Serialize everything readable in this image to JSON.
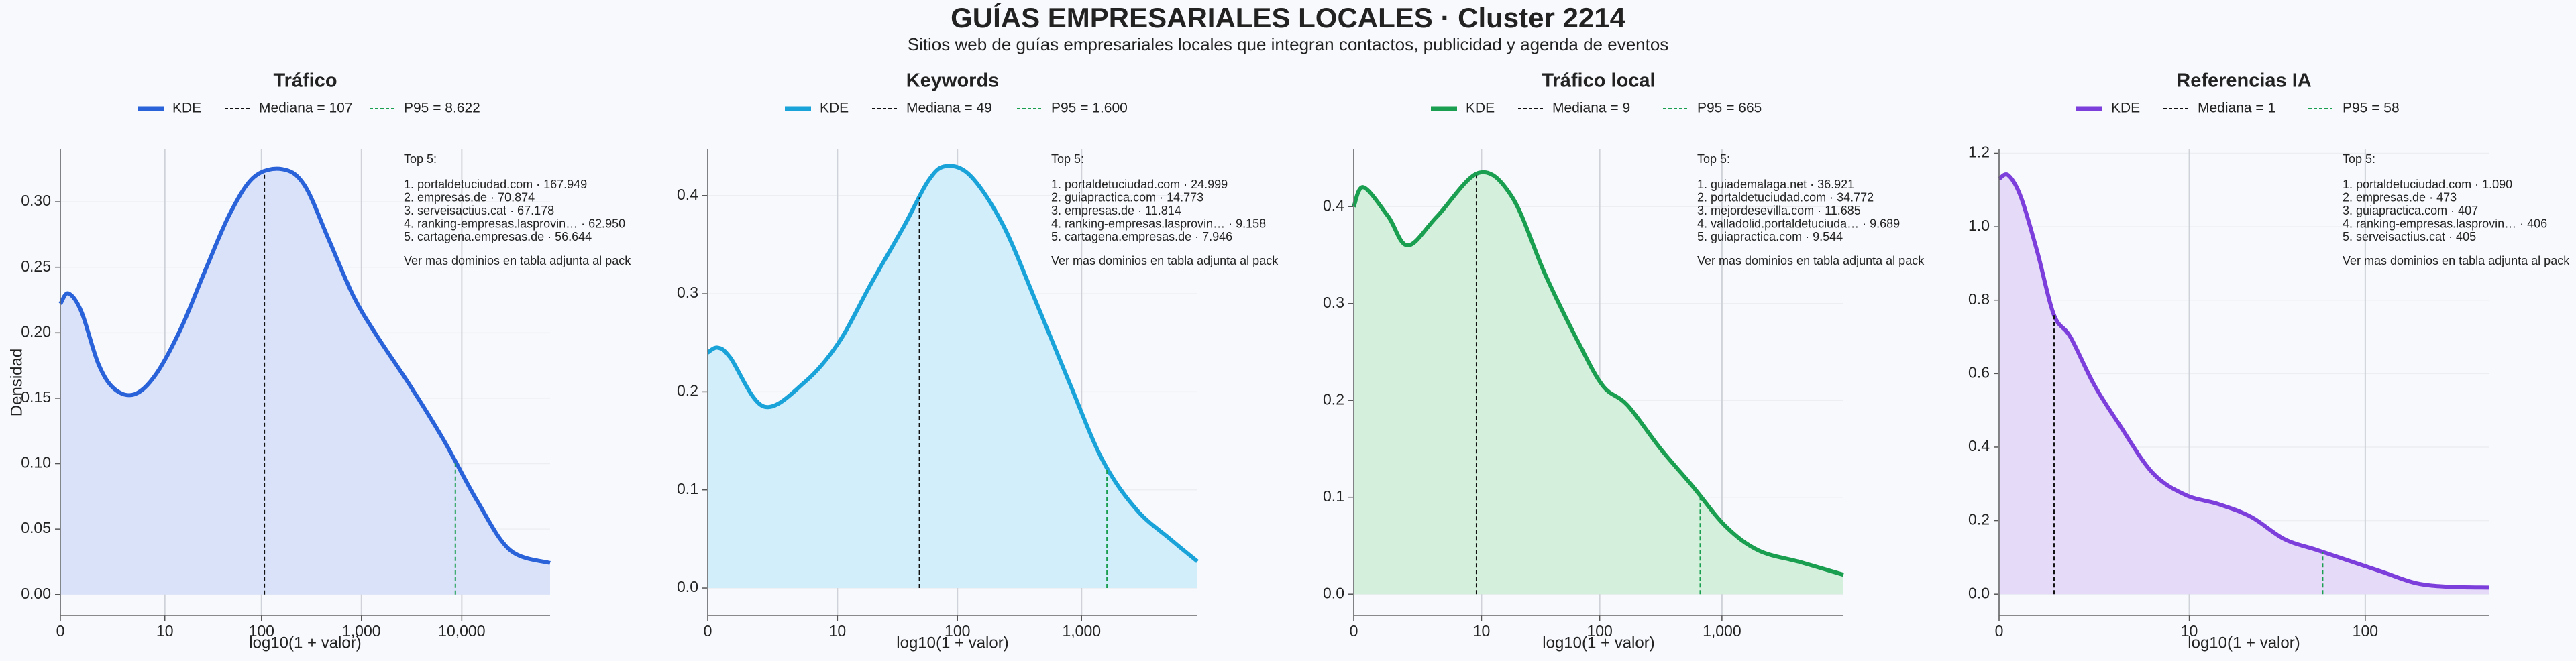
{
  "title": "GUÍAS EMPRESARIALES LOCALES · Cluster 2214",
  "subtitle": "Sitios web de guías empresariales locales que integran contactos, publicidad y agenda de eventos",
  "chart_data": [
    {
      "type": "line",
      "title": "Tráfico",
      "xlabel": "log10(1 + valor)",
      "ylabel": "Densidad",
      "grid": true,
      "fill_color": "#d9e2f8",
      "x": [
        0,
        0.08,
        0.21,
        0.38,
        0.54,
        0.74,
        0.95,
        1.2,
        1.44,
        1.69,
        1.93,
        2.21,
        2.43,
        2.67,
        2.92,
        3.16,
        3.49,
        3.82,
        4.15,
        4.48,
        4.88
      ],
      "series": [
        {
          "name": "KDE",
          "color": "#2962d9",
          "values": [
            0.222,
            0.23,
            0.216,
            0.176,
            0.157,
            0.153,
            0.168,
            0.203,
            0.247,
            0.291,
            0.319,
            0.325,
            0.313,
            0.272,
            0.228,
            0.197,
            0.159,
            0.118,
            0.072,
            0.034,
            0.024
          ]
        }
      ],
      "lines": [
        {
          "name": "Mediana = 107",
          "x": 2.033,
          "color": "#111111"
        },
        {
          "name": "P95 = 8.622",
          "x": 3.936,
          "color": "#1a9e50"
        }
      ],
      "xlim": [
        0,
        4.88
      ],
      "ylim": [
        -0.016,
        0.34
      ],
      "xticks": [
        0,
        {
          "value": 1.041,
          "label": "10"
        },
        {
          "value": 2.004,
          "label": "100"
        },
        {
          "value": 3,
          "label": "1,000"
        },
        {
          "value": 4,
          "label": "10,000"
        }
      ],
      "yticks": [
        {
          "value": 0,
          "label": "0.00"
        },
        0.05,
        {
          "value": 0.1,
          "label": "0.10"
        },
        0.15,
        {
          "value": 0.2,
          "label": "0.20"
        },
        0.25,
        {
          "value": 0.3,
          "label": "0.30"
        }
      ],
      "annotation": {
        "title": "Top 5:",
        "lines": [
          "1. portaldetuciudad.com · 167.949",
          "2. empresas.de · 70.874",
          "3. serveisactius.cat · 67.178",
          "4. ranking-empresas.lasprovin… · 62.950",
          "5. cartagena.empresas.de · 56.644"
        ],
        "note": "Ver mas dominios en tabla adjunta al pack"
      }
    },
    {
      "type": "line",
      "title": "Keywords",
      "xlabel": "log10(1 + valor)",
      "grid": true,
      "fill_color": "#d1eefa",
      "x": [
        0,
        0.08,
        0.18,
        0.45,
        0.78,
        1.05,
        1.31,
        1.58,
        1.77,
        1.91,
        2.11,
        2.37,
        2.64,
        2.9,
        3.17,
        3.44,
        3.71,
        3.93
      ],
      "series": [
        {
          "name": "KDE",
          "color": "#1aa3d9",
          "values": [
            0.24,
            0.245,
            0.235,
            0.185,
            0.21,
            0.25,
            0.31,
            0.37,
            0.415,
            0.43,
            0.42,
            0.37,
            0.29,
            0.21,
            0.13,
            0.08,
            0.05,
            0.027
          ]
        }
      ],
      "lines": [
        {
          "name": "Mediana = 49",
          "x": 1.699,
          "color": "#111111"
        },
        {
          "name": "P95 = 1.600",
          "x": 3.204,
          "color": "#1a9e50"
        }
      ],
      "xlim": [
        0,
        3.93
      ],
      "ylim": [
        -0.028,
        0.447
      ],
      "xticks": [
        0,
        {
          "value": 1.041,
          "label": "10"
        },
        {
          "value": 2.004,
          "label": "100"
        },
        {
          "value": 3,
          "label": "1,000"
        }
      ],
      "yticks": [
        {
          "value": 0,
          "label": "0.0"
        },
        0.1,
        0.2,
        0.3,
        0.4
      ],
      "annotation": {
        "title": "Top 5:",
        "lines": [
          "1. portaldetuciudad.com · 24.999",
          "2. guiapractica.com · 14.773",
          "3. empresas.de · 11.814",
          "4. ranking-empresas.lasprovin… · 9.158",
          "5. cartagena.empresas.de · 7.946"
        ],
        "note": "Ver mas dominios en tabla adjunta al pack"
      }
    },
    {
      "type": "line",
      "title": "Tráfico local",
      "xlabel": "log10(1 + valor)",
      "grid": true,
      "fill_color": "#d4efdc",
      "x": [
        0,
        0.08,
        0.28,
        0.44,
        0.68,
        1.02,
        1.29,
        1.56,
        1.83,
        2.03,
        2.23,
        2.5,
        2.77,
        3.03,
        3.3,
        3.64,
        3.99
      ],
      "series": [
        {
          "name": "KDE",
          "color": "#1a9e50",
          "values": [
            0.4,
            0.42,
            0.39,
            0.36,
            0.39,
            0.435,
            0.41,
            0.33,
            0.26,
            0.215,
            0.195,
            0.15,
            0.11,
            0.07,
            0.045,
            0.033,
            0.02
          ]
        }
      ],
      "lines": [
        {
          "name": "Mediana = 9",
          "x": 1,
          "color": "#111111"
        },
        {
          "name": "P95 = 665",
          "x": 2.823,
          "color": "#1a9e50"
        }
      ],
      "xlim": [
        0,
        3.99
      ],
      "ylim": [
        -0.022,
        0.459
      ],
      "xticks": [
        0,
        {
          "value": 1.041,
          "label": "10"
        },
        {
          "value": 2.004,
          "label": "100"
        },
        {
          "value": 3,
          "label": "1,000"
        }
      ],
      "yticks": [
        {
          "value": 0,
          "label": "0.0"
        },
        0.1,
        0.2,
        0.3,
        0.4
      ],
      "annotation": {
        "title": "Top 5:",
        "lines": [
          "1. guiademalaga.net · 36.921",
          "2. portaldetuciudad.com · 34.772",
          "3. mejordesevilla.com · 11.685",
          "4. valladolid.portaldetuciuda… · 9.689",
          "5. guiapractica.com · 9.544"
        ],
        "note": "Ver mas dominios en tabla adjunta al pack"
      }
    },
    {
      "type": "line",
      "title": "Referencias IA",
      "xlabel": "log10(1 + valor)",
      "grid": true,
      "fill_color": "#e5dbf8",
      "x": [
        0,
        0.05,
        0.12,
        0.21,
        0.3,
        0.39,
        0.52,
        0.66,
        0.84,
        1.02,
        1.2,
        1.38,
        1.56,
        1.74,
        1.92,
        2.1,
        2.28,
        2.46,
        2.68
      ],
      "series": [
        {
          "name": "KDE",
          "color": "#7d3fdb",
          "values": [
            1.13,
            1.14,
            1.08,
            0.93,
            0.76,
            0.7,
            0.57,
            0.46,
            0.33,
            0.27,
            0.245,
            0.21,
            0.15,
            0.12,
            0.09,
            0.06,
            0.03,
            0.02,
            0.018
          ]
        }
      ],
      "lines": [
        {
          "name": "Mediana = 1",
          "x": 0.301,
          "color": "#111111"
        },
        {
          "name": "P95 = 58",
          "x": 1.771,
          "color": "#1a9e50"
        }
      ],
      "xlim": [
        0,
        2.68
      ],
      "ylim": [
        -0.058,
        1.21
      ],
      "xticks": [
        0,
        {
          "value": 1.041,
          "label": "10"
        },
        {
          "value": 2.004,
          "label": "100"
        }
      ],
      "yticks": [
        {
          "value": 0,
          "label": "0.0"
        },
        0.2,
        0.4,
        0.6,
        0.8,
        {
          "value": 1,
          "label": "1.0"
        },
        1.2
      ],
      "annotation": {
        "title": "Top 5:",
        "lines": [
          "1. portaldetuciudad.com · 1.090",
          "2. empresas.de · 473",
          "3. guiapractica.com · 407",
          "4. ranking-empresas.lasprovin… · 406",
          "5. serveisactius.cat · 405"
        ],
        "note": "Ver mas dominios en tabla adjunta al pack"
      }
    }
  ]
}
